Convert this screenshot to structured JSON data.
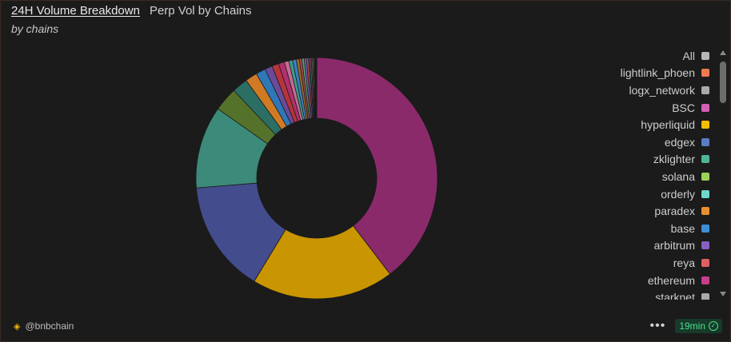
{
  "header": {
    "title": "24H Volume Breakdown",
    "subtitle": "Perp Vol by Chains",
    "subheader": "by chains"
  },
  "legend": [
    {
      "label": "All",
      "color": "#b8b8b8"
    },
    {
      "label": "lightlink_phoen",
      "color": "#f07a4f"
    },
    {
      "label": "logx_network",
      "color": "#aaaaaa"
    },
    {
      "label": "BSC",
      "color": "#d45fb5"
    },
    {
      "label": "hyperliquid",
      "color": "#f0c000"
    },
    {
      "label": "edgex",
      "color": "#5a7dc2"
    },
    {
      "label": "zklighter",
      "color": "#4fb39a"
    },
    {
      "label": "solana",
      "color": "#9fd15a"
    },
    {
      "label": "orderly",
      "color": "#6dd8cf"
    },
    {
      "label": "paradex",
      "color": "#e8902e"
    },
    {
      "label": "base",
      "color": "#3d8fd6"
    },
    {
      "label": "arbitrum",
      "color": "#8a5fc2"
    },
    {
      "label": "reya",
      "color": "#e06060"
    },
    {
      "label": "ethereum",
      "color": "#c83f8a"
    },
    {
      "label": "starknet",
      "color": "#aaaaaa"
    }
  ],
  "chart_data": {
    "type": "pie",
    "donut": true,
    "slices": [
      {
        "value": 39.5,
        "color": "#8a2a6b"
      },
      {
        "value": 19.0,
        "color": "#c99500"
      },
      {
        "value": 15.0,
        "color": "#434c8c"
      },
      {
        "value": 11.0,
        "color": "#3c8a7a"
      },
      {
        "value": 3.2,
        "color": "#55722b"
      },
      {
        "value": 2.1,
        "color": "#2b6e64"
      },
      {
        "value": 1.6,
        "color": "#d07a24"
      },
      {
        "value": 1.3,
        "color": "#2f78b8"
      },
      {
        "value": 1.0,
        "color": "#6b4a9a"
      },
      {
        "value": 0.9,
        "color": "#b8343a"
      },
      {
        "value": 0.8,
        "color": "#b0306e"
      },
      {
        "value": 0.6,
        "color": "#c86a96"
      },
      {
        "value": 0.5,
        "color": "#3b9e8a"
      },
      {
        "value": 0.5,
        "color": "#3e7fbf"
      },
      {
        "value": 0.4,
        "color": "#9a6a2a"
      },
      {
        "value": 0.35,
        "color": "#a14848"
      },
      {
        "value": 0.3,
        "color": "#58a87b"
      },
      {
        "value": 0.3,
        "color": "#7a5ab0"
      },
      {
        "value": 0.25,
        "color": "#c75050"
      },
      {
        "value": 0.2,
        "color": "#2f6f8f"
      },
      {
        "value": 0.2,
        "color": "#8a3f6f"
      },
      {
        "value": 0.15,
        "color": "#5f8f3f"
      },
      {
        "value": 0.15,
        "color": "#aa6633"
      },
      {
        "value": 0.12,
        "color": "#5a5a9a"
      },
      {
        "value": 0.1,
        "color": "#888888"
      },
      {
        "value": 0.08,
        "color": "#777777"
      },
      {
        "value": 0.06,
        "color": "#999999"
      },
      {
        "value": 0.05,
        "color": "#666666"
      }
    ]
  },
  "footer": {
    "source": "@bnbchain",
    "more_label": "•••",
    "time_badge": "19min",
    "check_icon": "✓"
  }
}
